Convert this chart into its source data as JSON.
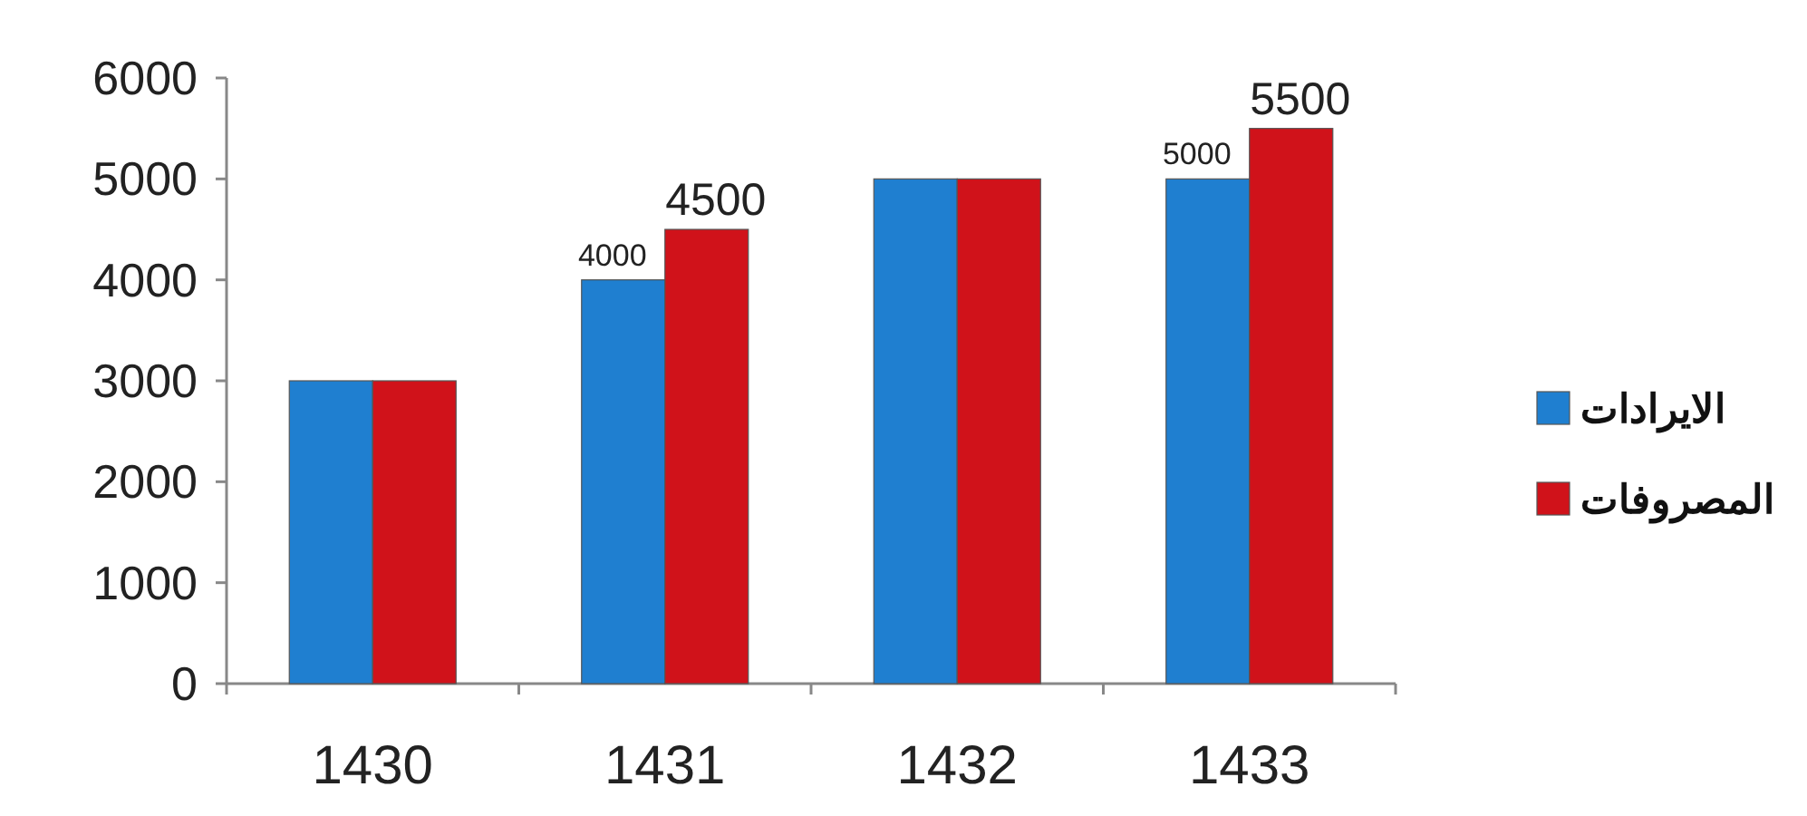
{
  "chart_data": {
    "type": "bar",
    "categories": [
      "1430",
      "1431",
      "1432",
      "1433"
    ],
    "series": [
      {
        "name": "الايرادات",
        "color": "#1f7fd0",
        "values": [
          3000,
          4000,
          5000,
          5000
        ],
        "value_labels": [
          null,
          "4000",
          null,
          "5000"
        ]
      },
      {
        "name": "المصروفات",
        "color": "#d0121a",
        "values": [
          3000,
          4500,
          5000,
          5500
        ],
        "value_labels": [
          null,
          "4500",
          null,
          "5500"
        ]
      }
    ],
    "ylim": [
      0,
      6000
    ],
    "yticks": [
      0,
      1000,
      2000,
      3000,
      4000,
      5000,
      6000
    ],
    "grid": false,
    "legend": "right"
  }
}
